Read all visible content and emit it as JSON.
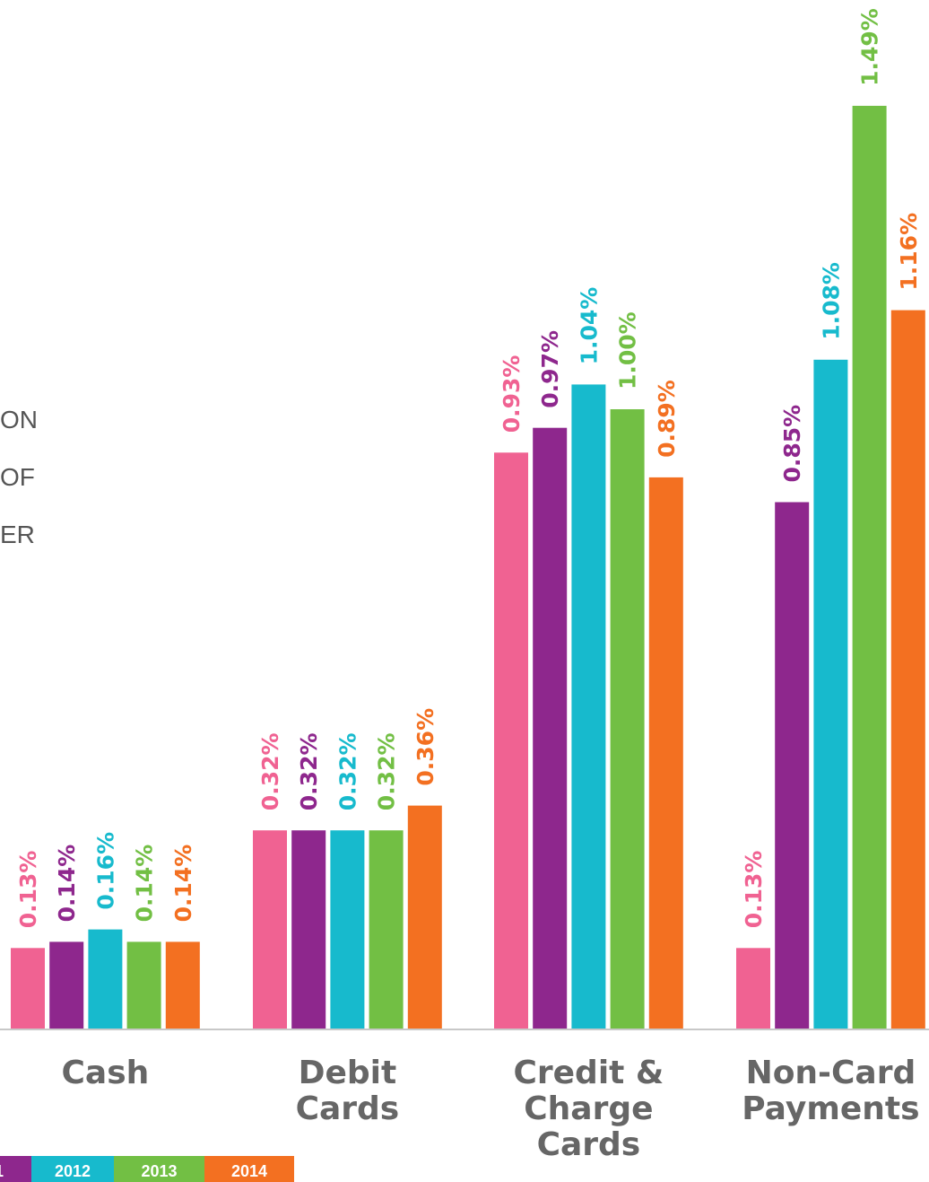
{
  "side_text": [
    "ON",
    "OF",
    "ER"
  ],
  "chart_data": {
    "type": "bar",
    "title": "",
    "xlabel": "",
    "ylabel": "",
    "ylim": [
      0,
      1.6
    ],
    "grid": false,
    "legend_placement": "bottom-left",
    "categories": [
      "Cash",
      "Debit Cards",
      "Credit & Charge Cards",
      "Non-Card Payments"
    ],
    "category_lines": [
      [
        "Cash"
      ],
      [
        "Debit",
        "Cards"
      ],
      [
        "Credit &",
        "Charge",
        "Cards"
      ],
      [
        "Non-Card",
        "Payments"
      ]
    ],
    "series": [
      {
        "name": "",
        "color": "#f06292",
        "values": [
          0.13,
          0.32,
          0.93,
          0.13
        ],
        "labels": [
          "0.13%",
          "0.32%",
          "0.93%",
          "0.13%"
        ]
      },
      {
        "name": "1",
        "color": "#8e278d",
        "values": [
          0.14,
          0.32,
          0.97,
          0.85
        ],
        "labels": [
          "0.14%",
          "0.32%",
          "0.97%",
          "0.85%"
        ]
      },
      {
        "name": "2012",
        "color": "#17bacd",
        "values": [
          0.16,
          0.32,
          1.04,
          1.08
        ],
        "labels": [
          "0.16%",
          "0.32%",
          "1.04%",
          "1.08%"
        ]
      },
      {
        "name": "2013",
        "color": "#72bf44",
        "values": [
          0.14,
          0.32,
          1.0,
          1.49
        ],
        "labels": [
          "0.14%",
          "0.32%",
          "1.00%",
          "1.49%"
        ]
      },
      {
        "name": "2014",
        "color": "#f37021",
        "values": [
          0.14,
          0.36,
          0.89,
          1.16
        ],
        "labels": [
          "0.14%",
          "0.36%",
          "0.89%",
          "1.16%"
        ]
      }
    ],
    "axis_color": "#c8c8c8",
    "category_label_color": "#666666"
  }
}
